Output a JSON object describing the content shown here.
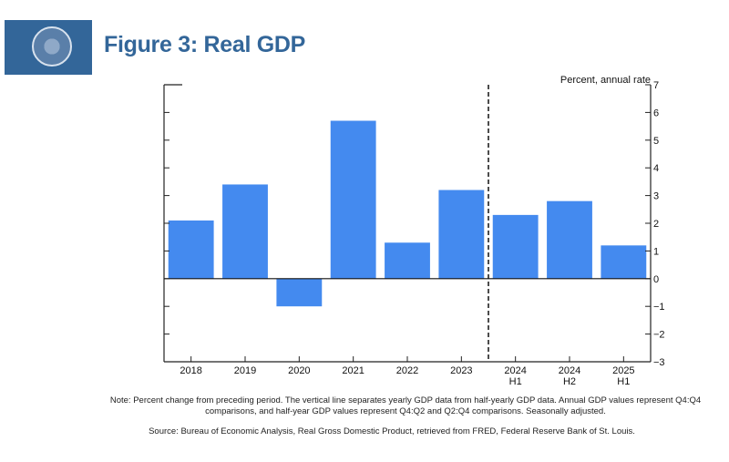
{
  "header": {
    "title": "Figure 3: Real GDP"
  },
  "chart_data": {
    "type": "bar",
    "title": "Figure 3: Real GDP",
    "ylabel": "Percent, annual rate",
    "categories": [
      [
        "2018"
      ],
      [
        "2019"
      ],
      [
        "2020"
      ],
      [
        "2021"
      ],
      [
        "2022"
      ],
      [
        "2023"
      ],
      [
        "2024",
        "H1"
      ],
      [
        "2024",
        "H2"
      ],
      [
        "2025",
        "H1"
      ]
    ],
    "values": [
      2.1,
      3.4,
      -1.0,
      5.7,
      1.3,
      3.2,
      2.3,
      2.8,
      1.2
    ],
    "ylim": [
      -3,
      7
    ],
    "yticks": [
      -3,
      -2,
      -1,
      0,
      1,
      2,
      3,
      4,
      5,
      6,
      7
    ],
    "ytick_labels": [
      "−3",
      "−2",
      "−1",
      "0",
      "1",
      "2",
      "3",
      "4",
      "5",
      "6",
      "7"
    ],
    "divider_after_index": 5,
    "bar_color": "#448aef",
    "grid": false
  },
  "notes": {
    "note": "Note: Percent change from preceding period. The vertical line separates yearly GDP data from half-yearly GDP data. Annual GDP values represent Q4:Q4 comparisons, and half-year GDP values represent Q4:Q2 and Q2:Q4 comparisons. Seasonally adjusted.",
    "source": "Source: Bureau of Economic Analysis, Real Gross Domestic Product, retrieved from FRED, Federal Reserve Bank of St. Louis."
  }
}
